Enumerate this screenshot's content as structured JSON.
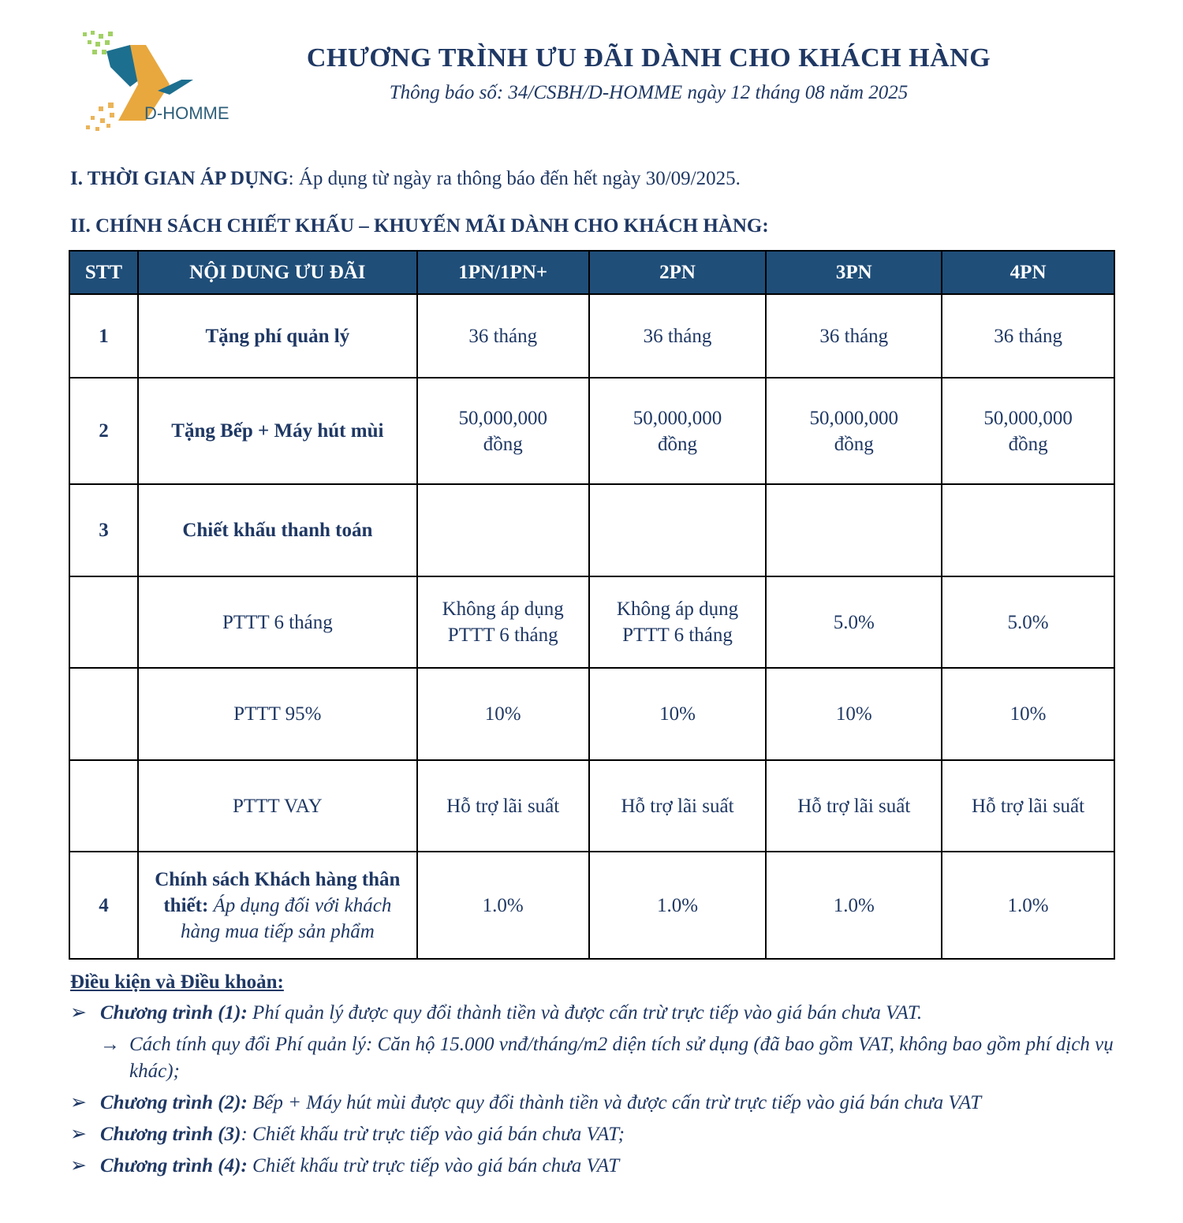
{
  "header": {
    "logo_text": "D-HOMME",
    "title": "CHƯƠNG TRÌNH ƯU ĐÃI DÀNH CHO KHÁCH HÀNG",
    "subtitle": "Thông báo số: 34/CSBH/D-HOMME ngày 12 tháng 08 năm 2025"
  },
  "section1": {
    "label": "I. THỜI GIAN ÁP DỤNG",
    "text": ": Áp dụng từ ngày ra thông báo đến hết ngày 30/09/2025."
  },
  "section2": {
    "label": "II. CHÍNH SÁCH CHIẾT KHẤU – KHUYẾN MÃI DÀNH CHO KHÁCH HÀNG:"
  },
  "table": {
    "headers": [
      "STT",
      "NỘI DUNG ƯU ĐÃI",
      "1PN/1PN+",
      "2PN",
      "3PN",
      "4PN"
    ],
    "rows": [
      {
        "stt": "1",
        "content": "Tặng phí quản lý",
        "values": [
          "36 tháng",
          "36 tháng",
          "36 tháng",
          "36 tháng"
        ]
      },
      {
        "stt": "2",
        "content": "Tặng Bếp + Máy hút mùi",
        "values": [
          "50,000,000 đồng",
          "50,000,000 đồng",
          "50,000,000 đồng",
          "50,000,000 đồng"
        ]
      },
      {
        "stt": "3",
        "content": "Chiết khấu thanh toán",
        "values": [
          "",
          "",
          "",
          ""
        ]
      },
      {
        "stt": "",
        "content": "PTTT 6 tháng",
        "values": [
          "Không áp dụng PTTT 6 tháng",
          "Không áp dụng PTTT 6 tháng",
          "5.0%",
          "5.0%"
        ]
      },
      {
        "stt": "",
        "content": "PTTT 95%",
        "values": [
          "10%",
          "10%",
          "10%",
          "10%"
        ]
      },
      {
        "stt": "",
        "content": "PTTT VAY",
        "values": [
          "Hỗ trợ lãi suất",
          "Hỗ trợ lãi suất",
          "Hỗ trợ lãi suất",
          "Hỗ trợ lãi suất"
        ]
      },
      {
        "stt": "4",
        "content": "Chính sách Khách hàng thân thiết:",
        "content_note": "Áp dụng đối với khách hàng mua tiếp sản phẩm",
        "values": [
          "1.0%",
          "1.0%",
          "1.0%",
          "1.0%"
        ]
      }
    ]
  },
  "terms": {
    "heading": "Điều kiện và Điều khoản:",
    "items": [
      {
        "label": "Chương trình (1):",
        "text": " Phí quản lý được quy đổi thành tiền và được cấn trừ trực tiếp vào giá bán chưa VAT."
      },
      {
        "label": "",
        "text": "Cách tính quy đổi Phí quản lý: Căn hộ 15.000 vnđ/tháng/m2 diện tích sử dụng (đã bao gồm VAT, không bao gồm phí dịch vụ khác);"
      },
      {
        "label": "Chương trình (2):",
        "text": " Bếp + Máy hút mùi được quy đổi thành tiền và được cấn trừ trực tiếp vào giá bán chưa VAT"
      },
      {
        "label": "Chương trình (3)",
        "text": ": Chiết khấu trừ trực tiếp vào giá bán chưa VAT;"
      },
      {
        "label": "Chương trình (4):",
        "text": " Chiết khấu trừ trực tiếp vào giá bán chưa VAT"
      }
    ]
  },
  "colors": {
    "header_fill": "#1f4e79",
    "text": "#1f3864",
    "logo_orange": "#e8a83e",
    "logo_teal": "#1d6f8f"
  }
}
